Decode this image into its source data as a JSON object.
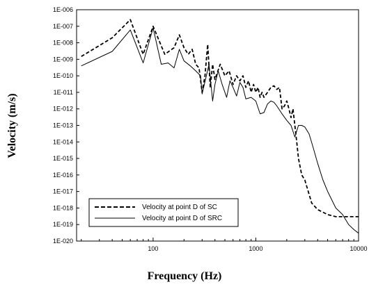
{
  "chart_data": {
    "type": "line",
    "xlabel": "Frequency (Hz)",
    "ylabel": "Velocity (m/s)",
    "x_scale": "log",
    "y_scale": "log",
    "xlim": [
      18,
      10000
    ],
    "ylim": [
      1e-20,
      1e-06
    ],
    "x_ticks": [
      100,
      1000,
      10000
    ],
    "x_tick_labels": [
      "100",
      "1000",
      "10000"
    ],
    "y_ticks": [
      1e-06,
      1e-07,
      1e-08,
      1e-09,
      1e-10,
      1e-11,
      1e-12,
      1e-13,
      1e-14,
      1e-15,
      1e-16,
      1e-17,
      1e-18,
      1e-19,
      1e-20
    ],
    "y_tick_labels": [
      "1E-006",
      "1E-007",
      "1E-008",
      "1E-009",
      "1E-010",
      "1E-011",
      "1E-012",
      "1E-013",
      "1E-014",
      "1E-015",
      "1E-016",
      "1E-017",
      "1E-018",
      "1E-019",
      "1E-020"
    ],
    "grid": false,
    "legend_position": "bottom-left",
    "series": [
      {
        "name": "Velocity at point D of SC",
        "style": "dashed",
        "color": "#000000",
        "x": [
          20,
          40,
          60,
          80,
          100,
          130,
          160,
          180,
          200,
          220,
          240,
          260,
          280,
          300,
          320,
          340,
          360,
          380,
          400,
          450,
          500,
          550,
          600,
          650,
          700,
          750,
          800,
          850,
          900,
          950,
          1000,
          1050,
          1100,
          1150,
          1200,
          1300,
          1400,
          1500,
          1600,
          1700,
          1800,
          1900,
          2000,
          2100,
          2200,
          2300,
          2400,
          2500,
          2600,
          2800,
          3000,
          3500,
          4000,
          5000,
          6000,
          7000,
          8000,
          9000,
          10000
        ],
        "y": [
          1.5e-09,
          2e-08,
          2.5e-07,
          2e-09,
          1e-07,
          2e-09,
          5e-09,
          3e-08,
          5e-09,
          2e-09,
          4e-09,
          5e-10,
          3e-10,
          1e-11,
          1e-10,
          8e-09,
          2e-11,
          5e-10,
          6e-11,
          5e-10,
          1e-10,
          2e-10,
          3e-11,
          1e-10,
          5e-11,
          1e-10,
          2e-11,
          5e-11,
          1e-11,
          3e-11,
          1e-11,
          2e-11,
          5e-12,
          1e-11,
          5e-12,
          1e-11,
          2e-11,
          2.5e-11,
          1.5e-11,
          2e-11,
          1e-12,
          1.5e-12,
          3e-12,
          1e-12,
          3e-13,
          1e-12,
          1e-13,
          1e-14,
          1e-15,
          1e-16,
          5e-17,
          2e-18,
          8e-19,
          4e-19,
          3e-19,
          3e-19,
          3e-19,
          3e-19,
          3e-19
        ]
      },
      {
        "name": "Velocity at point D of SRC",
        "style": "solid",
        "color": "#000000",
        "x": [
          20,
          40,
          60,
          80,
          100,
          120,
          140,
          160,
          180,
          200,
          230,
          260,
          290,
          300,
          330,
          350,
          380,
          400,
          430,
          470,
          520,
          560,
          600,
          650,
          700,
          750,
          800,
          900,
          1000,
          1100,
          1200,
          1300,
          1400,
          1500,
          1600,
          1800,
          2000,
          2200,
          2400,
          2600,
          2800,
          3000,
          3300,
          3600,
          4000,
          4500,
          5000,
          6000,
          7000,
          8000,
          9000,
          10000
        ],
        "y": [
          4e-10,
          3e-09,
          6e-08,
          6e-10,
          8e-08,
          5e-10,
          6e-10,
          3e-10,
          4e-09,
          8e-10,
          4e-10,
          2e-10,
          1e-10,
          8e-12,
          1e-10,
          5e-10,
          3e-12,
          3e-11,
          2e-10,
          3e-11,
          5e-12,
          5e-11,
          2e-11,
          6e-12,
          4e-11,
          2e-11,
          4e-12,
          5e-12,
          3e-12,
          5e-13,
          6e-13,
          2e-12,
          3e-12,
          2.5e-12,
          1.5e-12,
          5e-13,
          2e-13,
          1e-13,
          2e-14,
          1e-13,
          1e-13,
          8e-14,
          3e-14,
          5e-15,
          5e-16,
          5e-17,
          1e-17,
          1e-18,
          4e-19,
          1e-19,
          5e-20,
          3e-20
        ]
      }
    ]
  }
}
